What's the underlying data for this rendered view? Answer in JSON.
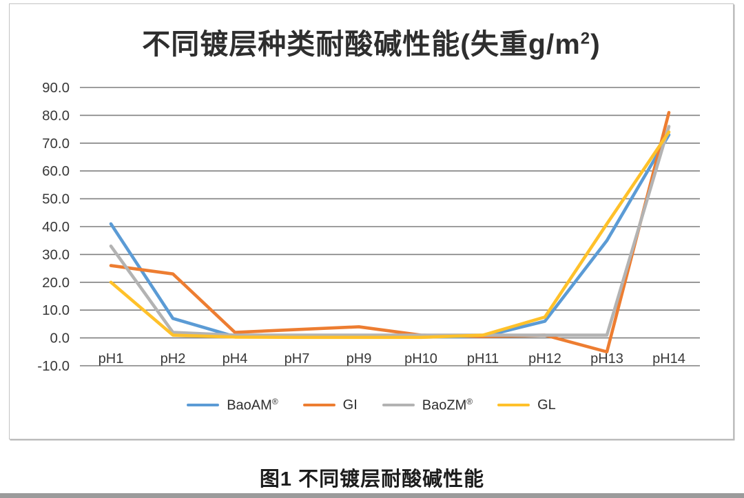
{
  "chart": {
    "title": "不同镀层种类耐酸碱性能(失重g/m²)",
    "caption": "图1 不同镀层耐酸碱性能"
  },
  "chart_data": {
    "type": "line",
    "title": "不同镀层种类耐酸碱性能(失重g/m²)",
    "categories": [
      "pH1",
      "pH2",
      "pH4",
      "pH7",
      "pH9",
      "pH10",
      "pH11",
      "pH12",
      "pH13",
      "pH14"
    ],
    "series": [
      {
        "name": "BaoAM®",
        "color": "#5B9BD5",
        "values": [
          41,
          7,
          0.5,
          0.3,
          0.3,
          0.3,
          0.5,
          6,
          35,
          73
        ]
      },
      {
        "name": "GI",
        "color": "#ED7D31",
        "values": [
          26,
          23,
          2,
          3,
          4,
          1,
          0.5,
          1,
          -5,
          81
        ]
      },
      {
        "name": "BaoZM®",
        "color": "#B3B3B3",
        "values": [
          33,
          2,
          1,
          1,
          1,
          1,
          1,
          1,
          1,
          76
        ]
      },
      {
        "name": "GL",
        "color": "#FFC12A",
        "values": [
          20,
          1,
          0.3,
          0.2,
          0.2,
          0.2,
          1,
          7.5,
          41,
          74
        ]
      }
    ],
    "ylim": [
      -10,
      90
    ],
    "y_ticks": [
      90,
      80,
      70,
      60,
      50,
      40,
      30,
      20,
      10,
      0,
      -10
    ],
    "y_tick_decimals": 1,
    "grid": true,
    "gridline_color": "#7F7F7F",
    "legend_position": "bottom",
    "xlabel": "",
    "ylabel": ""
  }
}
